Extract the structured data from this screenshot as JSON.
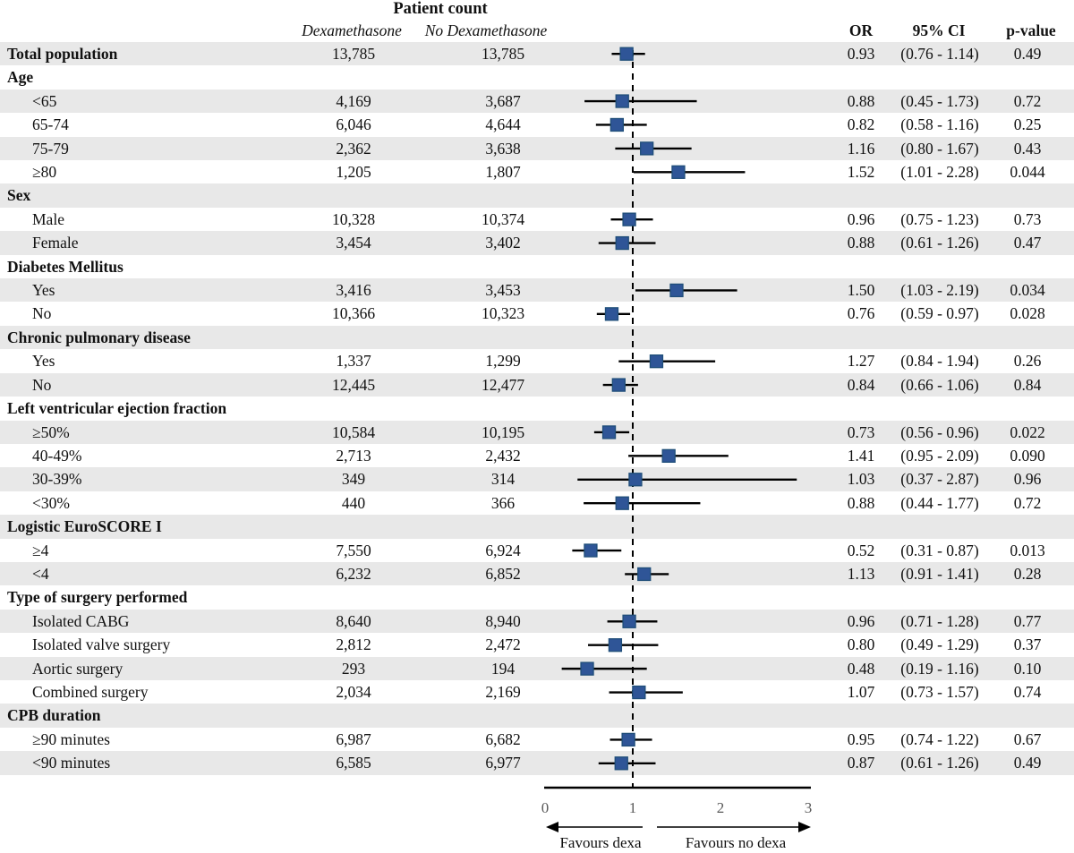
{
  "header": {
    "patient_count": "Patient count",
    "col_dexa": "Dexamethasone",
    "col_nodexa": "No Dexamethasone",
    "col_or": "OR",
    "col_ci": "95% CI",
    "col_p": "p-value"
  },
  "colors": {
    "row_shade": "#e8e8e8",
    "marker_fill": "#2f5597",
    "marker_stroke": "#1f4e79",
    "line": "#000000",
    "tick_label": "#595959",
    "text": "#111111"
  },
  "chart_data": {
    "type": "forest",
    "title": "Patient count",
    "x_axis": {
      "min": 0,
      "max": 3,
      "ticks": [
        0,
        1,
        2,
        3
      ],
      "reference_line": 1,
      "grid": false
    },
    "favours": {
      "left": "Favours dexa",
      "right": "Favours no dexa"
    },
    "rows": [
      {
        "kind": "data",
        "label": "Total population",
        "bold": true,
        "indent": false,
        "dexa": "13,785",
        "nodexa": "13,785",
        "or": 0.93,
        "lo": 0.76,
        "hi": 1.14,
        "or_text": "0.93",
        "ci_text": "(0.76 - 1.14)",
        "p": "0.49"
      },
      {
        "kind": "group",
        "label": "Age",
        "bold": true,
        "indent": false
      },
      {
        "kind": "data",
        "label": "<65",
        "bold": false,
        "indent": true,
        "dexa": "4,169",
        "nodexa": "3,687",
        "or": 0.88,
        "lo": 0.45,
        "hi": 1.73,
        "or_text": "0.88",
        "ci_text": "(0.45 - 1.73)",
        "p": "0.72"
      },
      {
        "kind": "data",
        "label": "65-74",
        "bold": false,
        "indent": true,
        "dexa": "6,046",
        "nodexa": "4,644",
        "or": 0.82,
        "lo": 0.58,
        "hi": 1.16,
        "or_text": "0.82",
        "ci_text": "(0.58 - 1.16)",
        "p": "0.25"
      },
      {
        "kind": "data",
        "label": "75-79",
        "bold": false,
        "indent": true,
        "dexa": "2,362",
        "nodexa": "3,638",
        "or": 1.16,
        "lo": 0.8,
        "hi": 1.67,
        "or_text": "1.16",
        "ci_text": "(0.80 - 1.67)",
        "p": "0.43"
      },
      {
        "kind": "data",
        "label": "≥80",
        "bold": false,
        "indent": true,
        "dexa": "1,205",
        "nodexa": "1,807",
        "or": 1.52,
        "lo": 1.01,
        "hi": 2.28,
        "or_text": "1.52",
        "ci_text": "(1.01 - 2.28)",
        "p": "0.044"
      },
      {
        "kind": "group",
        "label": "Sex",
        "bold": true,
        "indent": false
      },
      {
        "kind": "data",
        "label": "Male",
        "bold": false,
        "indent": true,
        "dexa": "10,328",
        "nodexa": "10,374",
        "or": 0.96,
        "lo": 0.75,
        "hi": 1.23,
        "or_text": "0.96",
        "ci_text": "(0.75 - 1.23)",
        "p": "0.73"
      },
      {
        "kind": "data",
        "label": "Female",
        "bold": false,
        "indent": true,
        "dexa": "3,454",
        "nodexa": "3,402",
        "or": 0.88,
        "lo": 0.61,
        "hi": 1.26,
        "or_text": "0.88",
        "ci_text": "(0.61 - 1.26)",
        "p": "0.47"
      },
      {
        "kind": "group",
        "label": "Diabetes Mellitus",
        "bold": true,
        "indent": false
      },
      {
        "kind": "data",
        "label": "Yes",
        "bold": false,
        "indent": true,
        "dexa": "3,416",
        "nodexa": "3,453",
        "or": 1.5,
        "lo": 1.03,
        "hi": 2.19,
        "or_text": "1.50",
        "ci_text": "(1.03 - 2.19)",
        "p": "0.034"
      },
      {
        "kind": "data",
        "label": "No",
        "bold": false,
        "indent": true,
        "dexa": "10,366",
        "nodexa": "10,323",
        "or": 0.76,
        "lo": 0.59,
        "hi": 0.97,
        "or_text": "0.76",
        "ci_text": "(0.59 - 0.97)",
        "p": "0.028"
      },
      {
        "kind": "group",
        "label": "Chronic pulmonary disease",
        "bold": true,
        "indent": false
      },
      {
        "kind": "data",
        "label": "Yes",
        "bold": false,
        "indent": true,
        "dexa": "1,337",
        "nodexa": "1,299",
        "or": 1.27,
        "lo": 0.84,
        "hi": 1.94,
        "or_text": "1.27",
        "ci_text": "(0.84 - 1.94)",
        "p": "0.26"
      },
      {
        "kind": "data",
        "label": "No",
        "bold": false,
        "indent": true,
        "dexa": "12,445",
        "nodexa": "12,477",
        "or": 0.84,
        "lo": 0.66,
        "hi": 1.06,
        "or_text": "0.84",
        "ci_text": "(0.66 - 1.06)",
        "p": "0.84"
      },
      {
        "kind": "group",
        "label": "Left ventricular ejection fraction",
        "bold": true,
        "indent": false
      },
      {
        "kind": "data",
        "label": "≥50%",
        "bold": false,
        "indent": true,
        "dexa": "10,584",
        "nodexa": "10,195",
        "or": 0.73,
        "lo": 0.56,
        "hi": 0.96,
        "or_text": "0.73",
        "ci_text": "(0.56 - 0.96)",
        "p": "0.022"
      },
      {
        "kind": "data",
        "label": "40-49%",
        "bold": false,
        "indent": true,
        "dexa": "2,713",
        "nodexa": "2,432",
        "or": 1.41,
        "lo": 0.95,
        "hi": 2.09,
        "or_text": "1.41",
        "ci_text": "(0.95 - 2.09)",
        "p": "0.090"
      },
      {
        "kind": "data",
        "label": "30-39%",
        "bold": false,
        "indent": true,
        "dexa": "349",
        "nodexa": "314",
        "or": 1.03,
        "lo": 0.37,
        "hi": 2.87,
        "or_text": "1.03",
        "ci_text": "(0.37 - 2.87)",
        "p": "0.96"
      },
      {
        "kind": "data",
        "label": "<30%",
        "bold": false,
        "indent": true,
        "dexa": "440",
        "nodexa": "366",
        "or": 0.88,
        "lo": 0.44,
        "hi": 1.77,
        "or_text": "0.88",
        "ci_text": "(0.44 - 1.77)",
        "p": "0.72"
      },
      {
        "kind": "group",
        "label": "Logistic EuroSCORE I",
        "bold": true,
        "indent": false
      },
      {
        "kind": "data",
        "label": "≥4",
        "bold": false,
        "indent": true,
        "dexa": "7,550",
        "nodexa": "6,924",
        "or": 0.52,
        "lo": 0.31,
        "hi": 0.87,
        "or_text": "0.52",
        "ci_text": "(0.31 - 0.87)",
        "p": "0.013"
      },
      {
        "kind": "data",
        "label": "<4",
        "bold": false,
        "indent": true,
        "dexa": "6,232",
        "nodexa": "6,852",
        "or": 1.13,
        "lo": 0.91,
        "hi": 1.41,
        "or_text": "1.13",
        "ci_text": "(0.91 - 1.41)",
        "p": "0.28"
      },
      {
        "kind": "group",
        "label": "Type of surgery performed",
        "bold": true,
        "indent": false
      },
      {
        "kind": "data",
        "label": "Isolated CABG",
        "bold": false,
        "indent": true,
        "dexa": "8,640",
        "nodexa": "8,940",
        "or": 0.96,
        "lo": 0.71,
        "hi": 1.28,
        "or_text": "0.96",
        "ci_text": "(0.71 - 1.28)",
        "p": "0.77"
      },
      {
        "kind": "data",
        "label": "Isolated valve surgery",
        "bold": false,
        "indent": true,
        "dexa": "2,812",
        "nodexa": "2,472",
        "or": 0.8,
        "lo": 0.49,
        "hi": 1.29,
        "or_text": "0.80",
        "ci_text": "(0.49 - 1.29)",
        "p": "0.37"
      },
      {
        "kind": "data",
        "label": "Aortic surgery",
        "bold": false,
        "indent": true,
        "dexa": "293",
        "nodexa": "194",
        "or": 0.48,
        "lo": 0.19,
        "hi": 1.16,
        "or_text": "0.48",
        "ci_text": "(0.19 - 1.16)",
        "p": "0.10"
      },
      {
        "kind": "data",
        "label": "Combined surgery",
        "bold": false,
        "indent": true,
        "dexa": "2,034",
        "nodexa": "2,169",
        "or": 1.07,
        "lo": 0.73,
        "hi": 1.57,
        "or_text": "1.07",
        "ci_text": "(0.73 - 1.57)",
        "p": "0.74"
      },
      {
        "kind": "group",
        "label": "CPB duration",
        "bold": true,
        "indent": false
      },
      {
        "kind": "data",
        "label": "≥90 minutes",
        "bold": false,
        "indent": true,
        "dexa": "6,987",
        "nodexa": "6,682",
        "or": 0.95,
        "lo": 0.74,
        "hi": 1.22,
        "or_text": "0.95",
        "ci_text": "(0.74 - 1.22)",
        "p": "0.67"
      },
      {
        "kind": "data",
        "label": "<90 minutes",
        "bold": false,
        "indent": true,
        "dexa": "6,585",
        "nodexa": "6,977",
        "or": 0.87,
        "lo": 0.61,
        "hi": 1.26,
        "or_text": "0.87",
        "ci_text": "(0.61 - 1.26)",
        "p": "0.49"
      }
    ]
  }
}
